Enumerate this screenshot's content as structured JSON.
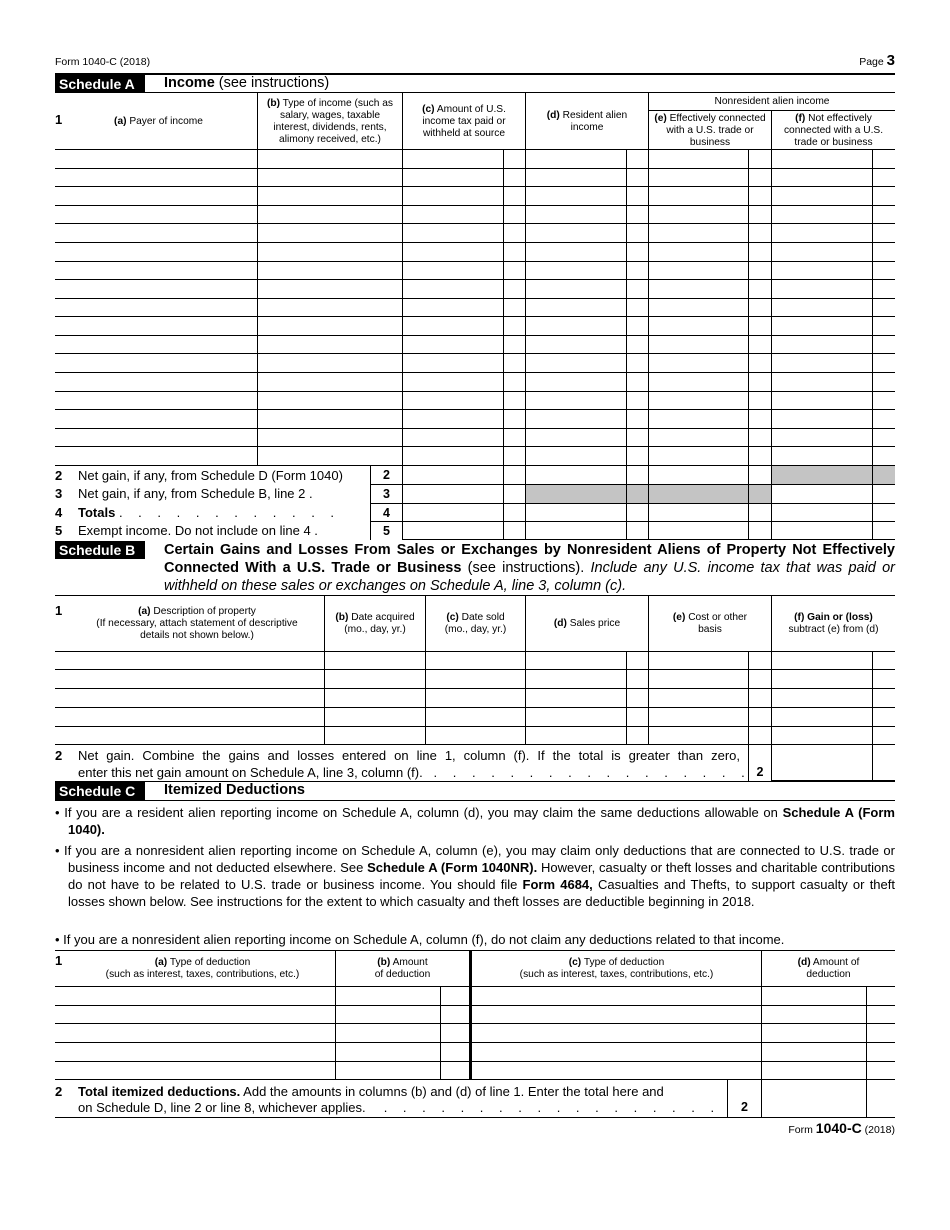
{
  "header": {
    "form_label": "Form 1040-C (2018)",
    "page_label": "Page",
    "page_number": "3"
  },
  "schedule_a": {
    "badge": "Schedule A",
    "title_bold": "Income",
    "title_rest": " (see instructions)",
    "line1": "1",
    "columns": {
      "a": {
        "letter": "(a)",
        "text": " Payer of income"
      },
      "b": {
        "letter": "(b)",
        "text": " Type of income (such as salary, wages, taxable interest, dividends, rents, alimony received, etc.)"
      },
      "c": {
        "letter": "(c)",
        "text": " Amount of U.S. income tax paid or withheld at source"
      },
      "d": {
        "letter": "(d)",
        "text": " Resident alien income"
      },
      "group": "Nonresident alien income",
      "e": {
        "letter": "(e)",
        "text": " Effectively connected with a U.S. trade or business"
      },
      "f": {
        "letter": "(f)",
        "text": " Not effectively connected with a U.S. trade or business"
      }
    },
    "lines": [
      {
        "num": "2",
        "text": "Net gain, if any, from Schedule D (Form 1040)",
        "box": "2"
      },
      {
        "num": "3",
        "text": "Net gain, if any, from Schedule B, line 2  .",
        "box": "3"
      },
      {
        "num": "4",
        "text": "Totals",
        "dots": ". . . . . . . . . . . .",
        "box": "4"
      },
      {
        "num": "5",
        "text": "Exempt income. Do not include on line 4 .",
        "box": "5"
      }
    ]
  },
  "schedule_b": {
    "badge": "Schedule B",
    "title_bold": "Certain Gains and Losses From Sales or Exchanges by Nonresident Aliens of Property Not Effectively Connected With a U.S. Trade or Business",
    "title_rest": " (see instructions). ",
    "title_italic": "Include any U.S. income tax that was paid or withheld on these sales or exchanges on Schedule A, line 3, column (c).",
    "line1": "1",
    "columns": {
      "a": {
        "letter": "(a)",
        "text": " Description of property",
        "sub": "(If necessary, attach statement of descriptive details not shown below.)"
      },
      "b": {
        "letter": "(b)",
        "text": " Date acquired (mo., day, yr.)"
      },
      "c": {
        "letter": "(c)",
        "text": " Date sold (mo., day, yr.)"
      },
      "d": {
        "letter": "(d)",
        "text": " Sales price"
      },
      "e": {
        "letter": "(e)",
        "text": " Cost or other basis"
      },
      "f": {
        "letter": "(f) Gain or (loss)",
        "text": " subtract (e) from (d)"
      }
    },
    "line2": {
      "num": "2",
      "text1": "Net gain. Combine the gains and losses entered on line 1, column (f). If the total is greater than zero,",
      "text2": "enter this net gain amount on Schedule A, line 3, column (f).",
      "dots": ". . . . . . . . . . . . . . . . .",
      "box": "2"
    }
  },
  "schedule_c": {
    "badge": "Schedule C",
    "title_bold": "Itemized Deductions",
    "bullets": [
      {
        "p1": "• If you are a resident alien reporting income on Schedule A, column (d), you may claim the same deductions allowable on ",
        "b1": "Schedule A (Form 1040)."
      },
      {
        "p1": "• If you are a nonresident alien reporting income on Schedule A, column (e), you may claim only deductions that are connected to U.S. trade or business income and not deducted elsewhere. See ",
        "b1": "Schedule A (Form 1040NR).",
        "p2": " However, casualty or theft losses and charitable contributions do not have to be related to U.S. trade or business income. You should file ",
        "b2": "Form 4684,",
        "p3": " Casualties and Thefts, to support casualty or theft losses shown below. See instructions for the extent to which casualty and theft losses are deductible beginning in 2018."
      },
      {
        "p1": "• If you are a nonresident alien reporting income on Schedule A, column (f), do not claim any deductions related to that income."
      }
    ],
    "line1": "1",
    "columns": {
      "a": {
        "letter": "(a)",
        "text": " Type of deduction",
        "sub": "(such as interest, taxes, contributions, etc.)"
      },
      "b": {
        "letter": "(b)",
        "text": " Amount",
        "sub": "of deduction"
      },
      "c": {
        "letter": "(c)",
        "text": " Type of deduction",
        "sub": "(such as interest, taxes, contributions, etc.)"
      },
      "d": {
        "letter": "(d)",
        "text": " Amount of",
        "sub": "deduction"
      }
    },
    "line2": {
      "num": "2",
      "bold": "Total itemized deductions.",
      "text1": " Add the amounts in columns (b) and (d) of line 1. Enter the total here and",
      "text2": "on Schedule D, line 2 or line 8, whichever applies.",
      "dots": ". . . . . . . . . . . . . . . . . .",
      "box": "2"
    }
  },
  "footer": {
    "form_prefix": "Form ",
    "form_name": "1040-C",
    "year": " (2018)"
  },
  "colors": {
    "shade": "#c4c4c4",
    "badge_bg": "#000000"
  }
}
